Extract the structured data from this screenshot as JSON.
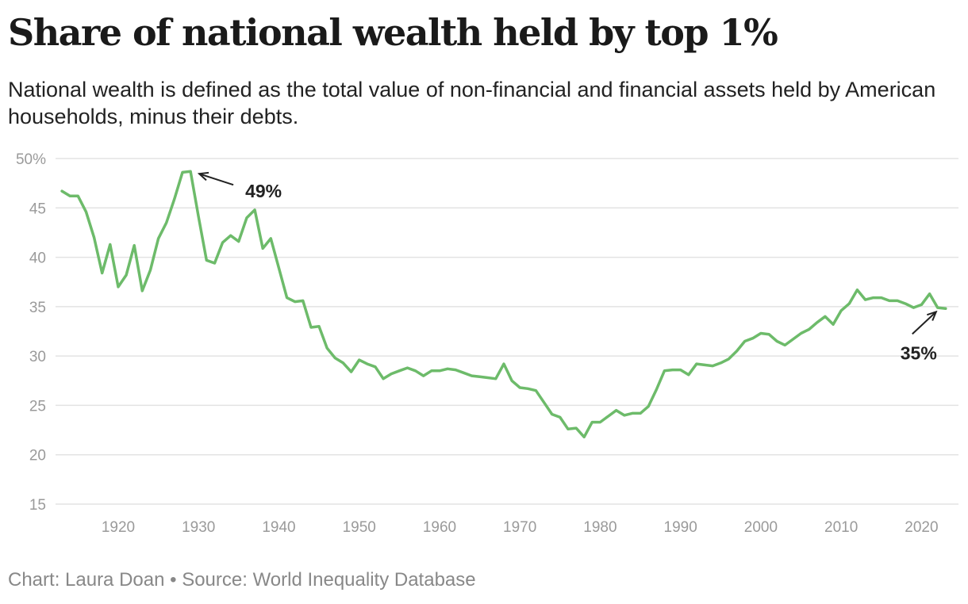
{
  "title": "Share of national wealth held by top 1%",
  "subtitle": "National wealth is defined as the total value of non-financial and financial assets held by American households, minus their debts.",
  "credit": "Chart: Laura Doan • Source: World Inequality Database",
  "colors": {
    "line": "#6dbb6a",
    "grid": "#e3e3e3",
    "tick": "#9a9a9a",
    "text": "#222222"
  },
  "chart_data": {
    "type": "line",
    "title": "Share of national wealth held by top 1%",
    "xlabel": "",
    "ylabel": "",
    "xlim": [
      1913,
      2023
    ],
    "ylim": [
      15,
      50
    ],
    "grid": true,
    "x_ticks": [
      1920,
      1930,
      1940,
      1950,
      1960,
      1970,
      1980,
      1990,
      2000,
      2010,
      2020
    ],
    "y_ticks": [
      {
        "value": 50,
        "label": "50%"
      },
      {
        "value": 45,
        "label": "45"
      },
      {
        "value": 40,
        "label": "40"
      },
      {
        "value": 35,
        "label": "35"
      },
      {
        "value": 30,
        "label": "30"
      },
      {
        "value": 25,
        "label": "25"
      },
      {
        "value": 20,
        "label": "20"
      },
      {
        "value": 15,
        "label": "15"
      }
    ],
    "x": [
      1913,
      1914,
      1915,
      1916,
      1917,
      1918,
      1919,
      1920,
      1921,
      1922,
      1923,
      1924,
      1925,
      1926,
      1927,
      1928,
      1929,
      1930,
      1931,
      1932,
      1933,
      1934,
      1935,
      1936,
      1937,
      1938,
      1939,
      1940,
      1941,
      1942,
      1943,
      1944,
      1945,
      1946,
      1947,
      1948,
      1949,
      1950,
      1951,
      1952,
      1953,
      1954,
      1955,
      1956,
      1957,
      1958,
      1959,
      1960,
      1961,
      1962,
      1963,
      1964,
      1965,
      1966,
      1967,
      1968,
      1969,
      1970,
      1971,
      1972,
      1973,
      1974,
      1975,
      1976,
      1977,
      1978,
      1979,
      1980,
      1981,
      1982,
      1983,
      1984,
      1985,
      1986,
      1987,
      1988,
      1989,
      1990,
      1991,
      1992,
      1993,
      1994,
      1995,
      1996,
      1997,
      1998,
      1999,
      2000,
      2001,
      2002,
      2003,
      2004,
      2005,
      2006,
      2007,
      2008,
      2009,
      2010,
      2011,
      2012,
      2013,
      2014,
      2015,
      2016,
      2017,
      2018,
      2019,
      2020,
      2021,
      2022,
      2023
    ],
    "series": [
      {
        "values": [
          46.7,
          46.2,
          46.2,
          44.6,
          42.0,
          38.4,
          41.3,
          37.0,
          38.2,
          41.2,
          36.6,
          38.7,
          41.9,
          43.5,
          45.9,
          48.6,
          48.7,
          44.1,
          39.7,
          39.4,
          41.5,
          42.2,
          41.6,
          44.0,
          44.8,
          40.9,
          41.9,
          38.9,
          35.9,
          35.5,
          35.6,
          32.9,
          33.0,
          30.8,
          29.8,
          29.3,
          28.4,
          29.6,
          29.2,
          28.9,
          27.7,
          28.2,
          28.5,
          28.8,
          28.5,
          28.0,
          28.5,
          28.5,
          28.7,
          28.6,
          28.3,
          28.0,
          27.9,
          27.8,
          27.7,
          29.2,
          27.5,
          26.8,
          26.7,
          26.5,
          25.3,
          24.1,
          23.8,
          22.6,
          22.7,
          21.8,
          23.3,
          23.3,
          23.9,
          24.5,
          24.0,
          24.2,
          24.2,
          24.9,
          26.6,
          28.5,
          28.6,
          28.6,
          28.1,
          29.2,
          29.1,
          29.0,
          29.3,
          29.7,
          30.5,
          31.5,
          31.8,
          32.3,
          32.2,
          31.5,
          31.1,
          31.7,
          32.3,
          32.7,
          33.4,
          34.0,
          33.2,
          34.6,
          35.3,
          36.7,
          35.7,
          35.9,
          35.9,
          35.6,
          35.6,
          35.3,
          34.9,
          35.2,
          36.3,
          34.9,
          34.8
        ]
      }
    ],
    "annotations": [
      {
        "label": "49%",
        "x": 1929,
        "y": 48.7
      },
      {
        "label": "35%",
        "x": 2023,
        "y": 34.8
      }
    ]
  }
}
